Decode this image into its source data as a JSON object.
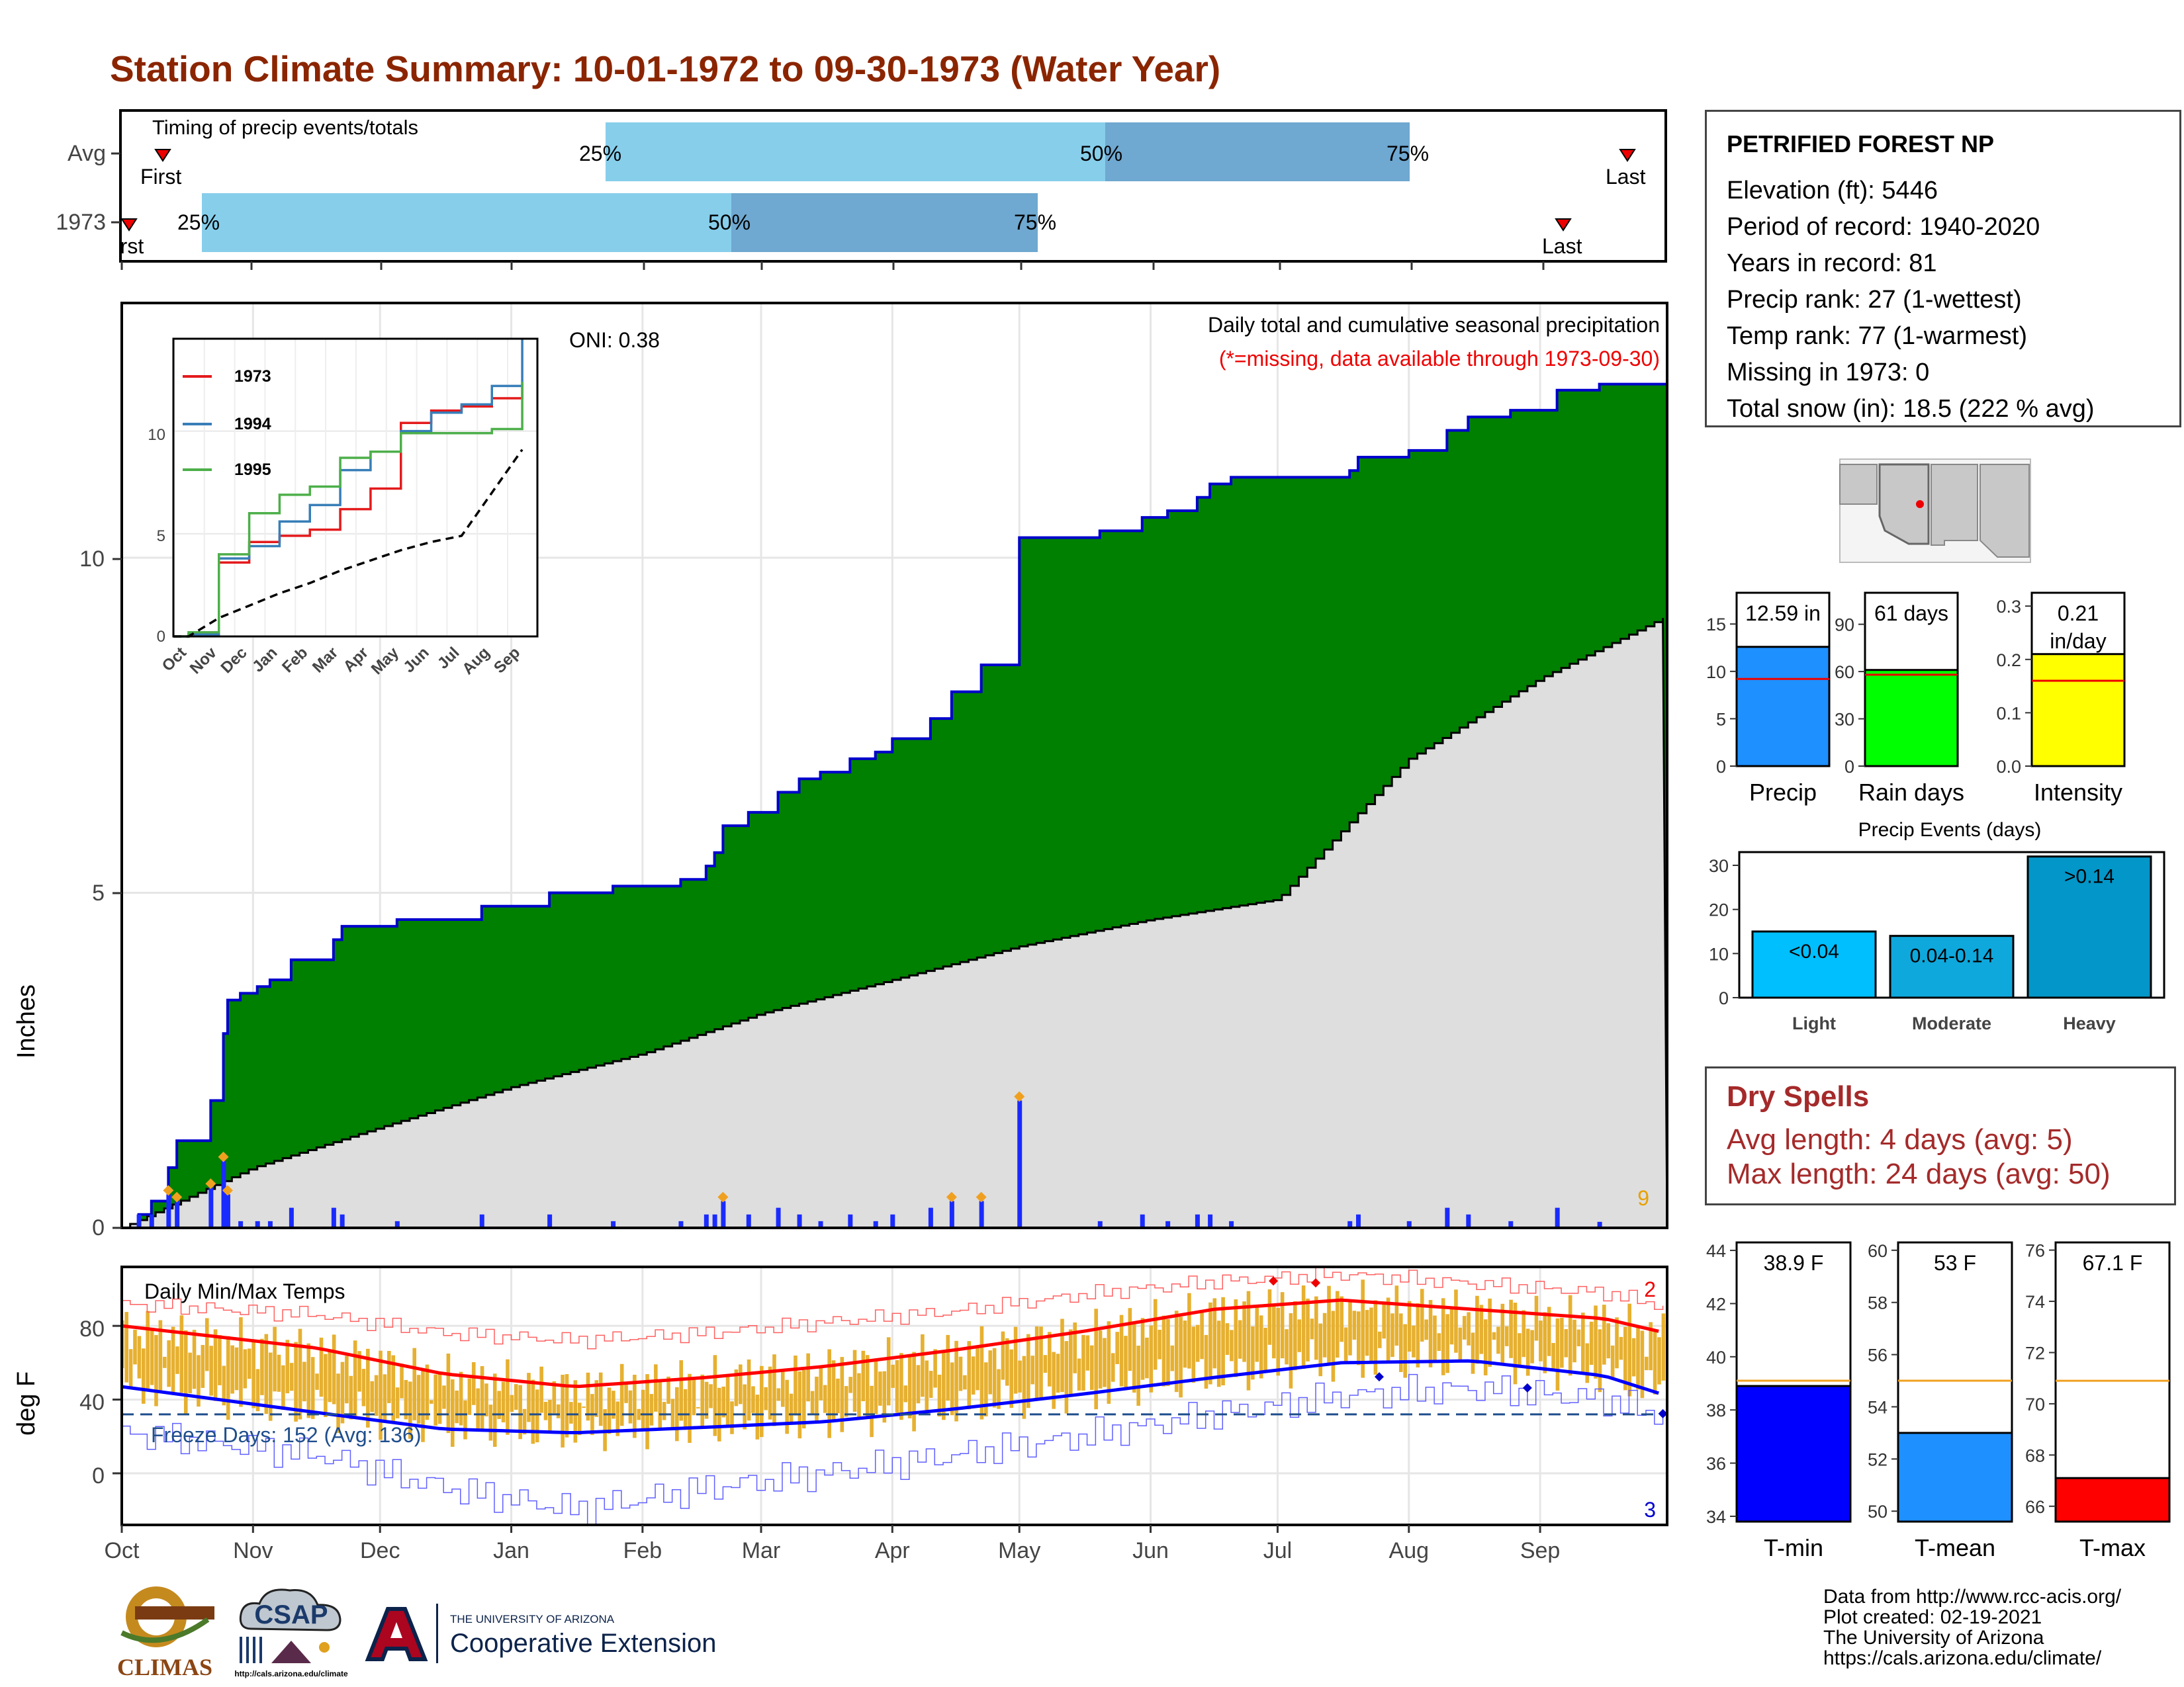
{
  "title": "Station Climate Summary: 10-01-1972 to 09-30-1973 (Water Year)",
  "colors": {
    "title": "#8B2500",
    "precip_fill": "#008000",
    "precip_line": "#0000CD",
    "normal_fill": "#DEDEDE",
    "bar_light": "#87CEEB",
    "bar_dark": "#6FA8D0",
    "temp_fill": "#E6B030",
    "tmax": "#FF0000",
    "tmin": "#0000FF",
    "dry": "#A52A2A"
  },
  "timing": {
    "title": "Timing of precip events/totals",
    "rows": [
      {
        "label": "Avg",
        "first": "First",
        "last": "Last",
        "p25": "25%",
        "p50": "50%",
        "p75": "75%"
      },
      {
        "label": "1973",
        "first": "First",
        "last": "Last",
        "p25": "25%",
        "p50": "50%",
        "p75": "75%"
      }
    ]
  },
  "months": [
    "Oct",
    "Nov",
    "Dec",
    "Jan",
    "Feb",
    "Mar",
    "Apr",
    "May",
    "Jun",
    "Jul",
    "Aug",
    "Sep"
  ],
  "precip_panel": {
    "ylabel": "Inches",
    "yticks": [
      "0",
      "5",
      "10"
    ],
    "title": "Daily total and cumulative seasonal precipitation",
    "subtitle": "(*=missing, data available through 1973-09-30)",
    "oni": "ONI: 0.38",
    "count_label": "9"
  },
  "inset": {
    "legend": [
      "1973",
      "1994",
      "1995"
    ],
    "yticks": [
      "0",
      "5",
      "10"
    ],
    "xticks": [
      "Oct",
      "Nov",
      "Dec",
      "Jan",
      "Feb",
      "Mar",
      "Apr",
      "May",
      "Jun",
      "Jul",
      "Aug",
      "Sep"
    ]
  },
  "temp_panel": {
    "ylabel": "deg F",
    "title": "Daily Min/Max Temps",
    "yticks": [
      "0",
      "40",
      "80"
    ],
    "freeze": "Freeze Days: 152 (Avg: 136)",
    "count_max": "2",
    "count_min": "3"
  },
  "station": {
    "name": "PETRIFIED FOREST NP",
    "lines": [
      "Elevation (ft): 5446",
      "Period of record: 1940-2020",
      "Years in record: 81",
      "Precip rank: 27 (1-wettest)",
      "Temp rank: 77 (1-warmest)",
      "Missing in 1973: 0",
      "Total snow (in): 18.5 (222 % avg)"
    ]
  },
  "summary_bars": [
    {
      "label": "Precip",
      "value": "12.59 in",
      "yticks": [
        "0",
        "5",
        "10",
        "15"
      ]
    },
    {
      "label": "Rain days",
      "value": "61 days",
      "yticks": [
        "0",
        "30",
        "60",
        "90"
      ]
    },
    {
      "label": "Intensity",
      "value": "0.21",
      "unit": "in/day",
      "yticks": [
        "0.0",
        "0.1",
        "0.2",
        "0.3"
      ]
    }
  ],
  "precip_events": {
    "title": "Precip Events (days)",
    "yticks": [
      "0",
      "10",
      "20",
      "30"
    ],
    "bars": [
      {
        "label": "Light",
        "value_label": "<0.04"
      },
      {
        "label": "Moderate",
        "value_label": "0.04-0.14"
      },
      {
        "label": "Heavy",
        "value_label": ">0.14"
      }
    ]
  },
  "dry_spells": {
    "title": "Dry Spells",
    "avg": "Avg length: 4 days (avg: 5)",
    "max": "Max length: 24 days (avg: 50)"
  },
  "temp_bars": [
    {
      "label": "T-min",
      "value": "38.9 F",
      "yticks": [
        "34",
        "36",
        "38",
        "40",
        "42",
        "44"
      ]
    },
    {
      "label": "T-mean",
      "value": "53 F",
      "yticks": [
        "50",
        "52",
        "54",
        "56",
        "58",
        "60"
      ]
    },
    {
      "label": "T-max",
      "value": "67.1 F",
      "yticks": [
        "66",
        "68",
        "70",
        "72",
        "74",
        "76"
      ]
    }
  ],
  "footer": {
    "lines": [
      "Data from http://www.rcc-acis.org/",
      "Plot created: 02-19-2021",
      "The University of Arizona",
      "https://cals.arizona.edu/climate/"
    ],
    "logos": {
      "climas": "CLIMAS",
      "csap": "CSAP",
      "csap_url": "http://cals.arizona.edu/climate",
      "ua_top": "THE UNIVERSITY OF ARIZONA",
      "ua_bottom": "Cooperative Extension"
    }
  },
  "chart_data": [
    {
      "type": "area",
      "title": "Daily total and cumulative seasonal precipitation",
      "ylabel": "Inches",
      "ylim": [
        0,
        13.8
      ],
      "series": [
        {
          "name": "1973",
          "x": [
            "10-01",
            "10-05",
            "10-08",
            "10-12",
            "10-14",
            "10-22",
            "10-25",
            "10-26",
            "10-29",
            "11-02",
            "11-05",
            "11-10",
            "11-20",
            "11-22",
            "12-01",
            "12-05",
            "12-15",
            "12-25",
            "01-05",
            "01-10",
            "01-25",
            "02-10",
            "02-16",
            "02-18",
            "02-20",
            "02-26",
            "03-05",
            "03-10",
            "03-15",
            "03-22",
            "03-28",
            "03-30",
            "04-01",
            "04-10",
            "04-15",
            "04-22",
            "05-01",
            "05-20",
            "05-30",
            "06-05",
            "06-12",
            "06-15",
            "06-20",
            "06-25",
            "07-05",
            "07-18",
            "07-20",
            "08-01",
            "08-05",
            "08-10",
            "08-15",
            "08-25",
            "09-01",
            "09-05",
            "09-15",
            "09-30"
          ],
          "values": [
            0,
            0.2,
            0.4,
            0.9,
            1.3,
            1.9,
            2.9,
            3.4,
            3.5,
            3.6,
            3.7,
            4.0,
            4.3,
            4.5,
            4.5,
            4.6,
            4.6,
            4.8,
            4.8,
            5.0,
            5.1,
            5.2,
            5.4,
            5.6,
            6.0,
            6.2,
            6.5,
            6.7,
            6.8,
            7.0,
            7.1,
            7.1,
            7.3,
            7.6,
            8.0,
            8.4,
            10.3,
            10.4,
            10.6,
            10.7,
            10.9,
            11.1,
            11.2,
            11.2,
            11.2,
            11.3,
            11.5,
            11.6,
            11.6,
            11.9,
            12.1,
            12.2,
            12.2,
            12.5,
            12.59,
            12.59
          ]
        },
        {
          "name": "normal",
          "x": [
            "10-01",
            "11-01",
            "12-01",
            "01-01",
            "02-01",
            "03-01",
            "04-01",
            "05-01",
            "06-01",
            "07-01",
            "08-01",
            "09-01",
            "09-30"
          ],
          "values": [
            0,
            0.9,
            1.5,
            2.1,
            2.6,
            3.2,
            3.7,
            4.2,
            4.6,
            4.9,
            7.0,
            8.2,
            9.1
          ]
        }
      ]
    },
    {
      "type": "line",
      "title": "inset cumulative precipitation",
      "x": [
        "Oct",
        "Nov",
        "Dec",
        "Jan",
        "Feb",
        "Mar",
        "Apr",
        "May",
        "Jun",
        "Jul",
        "Aug",
        "Sep"
      ],
      "ylim": [
        0,
        14.5
      ],
      "series": [
        {
          "name": "1973",
          "values": [
            0.1,
            3.6,
            4.6,
            4.9,
            5.2,
            6.2,
            7.2,
            10.4,
            11.0,
            11.2,
            11.6,
            12.3
          ]
        },
        {
          "name": "1994",
          "values": [
            0.1,
            3.8,
            4.4,
            5.6,
            6.4,
            8.1,
            9.0,
            10.0,
            10.9,
            11.3,
            12.2,
            14.5
          ]
        },
        {
          "name": "1995",
          "values": [
            0.2,
            4.0,
            6.0,
            6.9,
            7.3,
            8.7,
            9.0,
            9.9,
            9.9,
            9.9,
            10.1,
            12.4
          ]
        },
        {
          "name": "average",
          "values": [
            0,
            0.9,
            1.5,
            2.1,
            2.6,
            3.2,
            3.7,
            4.2,
            4.6,
            4.9,
            7.0,
            9.1
          ]
        }
      ]
    },
    {
      "type": "line",
      "title": "Daily Min/Max Temps",
      "ylabel": "deg F",
      "x": [
        "Oct",
        "Nov",
        "Dec",
        "Jan",
        "Feb",
        "Mar",
        "Apr",
        "May",
        "Jun",
        "Jul",
        "Aug",
        "Sep",
        "Sep-end"
      ],
      "ylim": [
        -28,
        112
      ],
      "series": [
        {
          "name": "normal max",
          "values": [
            80,
            68,
            54,
            47,
            52,
            58,
            67,
            77,
            89,
            94,
            89,
            84,
            76
          ]
        },
        {
          "name": "normal min",
          "values": [
            47,
            33,
            24,
            22,
            25,
            28,
            35,
            43,
            52,
            60,
            61,
            53,
            42
          ]
        },
        {
          "name": "record max",
          "values": [
            92,
            86,
            76,
            72,
            76,
            82,
            88,
            97,
            104,
            108,
            103,
            98,
            90
          ]
        },
        {
          "name": "record min",
          "values": [
            22,
            10,
            -8,
            -20,
            -8,
            0,
            10,
            20,
            32,
            42,
            46,
            40,
            30
          ]
        },
        {
          "name": "freeze line",
          "values": [
            32,
            32,
            32,
            32,
            32,
            32,
            32,
            32,
            32,
            32,
            32,
            32,
            32
          ]
        }
      ]
    },
    {
      "type": "bar",
      "title": "Precip Events (days)",
      "categories": [
        "Light",
        "Moderate",
        "Heavy"
      ],
      "values": [
        15,
        14,
        32
      ],
      "ylim": [
        0,
        33
      ]
    },
    {
      "type": "bar",
      "categories": [
        "Precip",
        "Rain days",
        "Intensity"
      ],
      "values": [
        12.59,
        61,
        0.21
      ],
      "averages": [
        9.2,
        58,
        0.16
      ]
    },
    {
      "type": "bar",
      "categories": [
        "T-min",
        "T-mean",
        "T-max"
      ],
      "values": [
        38.9,
        53,
        67.1
      ],
      "averages": [
        39.1,
        55,
        70.9
      ]
    }
  ]
}
